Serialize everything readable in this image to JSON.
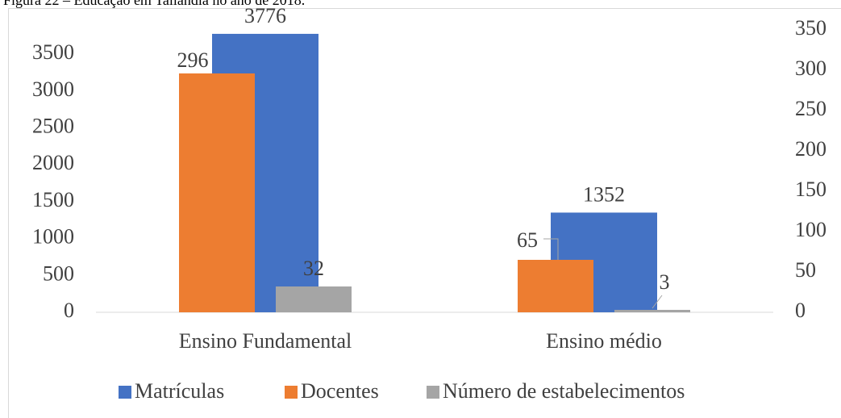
{
  "caption": "Figura 22 – Educação em Tailândia no ano de 2018.",
  "chart_data": {
    "type": "bar",
    "categories": [
      "Ensino Fundamental",
      "Ensino médio"
    ],
    "series": [
      {
        "name": "Matrículas",
        "color": "#4472c4",
        "values": [
          3776,
          1352
        ]
      },
      {
        "name": "Docentes",
        "color": "#ed7d31",
        "values": [
          296,
          65
        ],
        "axis": "y2"
      },
      {
        "name": "Número de estabelecimentos",
        "color": "#a5a5a5",
        "values": [
          32,
          3
        ],
        "axis": "y2"
      }
    ],
    "ylim": [
      0,
      3830
    ],
    "yticks": [
      0,
      500,
      1000,
      1500,
      2000,
      2500,
      3000,
      3500
    ],
    "y2lim": [
      0,
      350
    ],
    "y2ticks": [
      0,
      50,
      100,
      150,
      200,
      250,
      300,
      350
    ],
    "grid": false,
    "legend": "bottom"
  }
}
